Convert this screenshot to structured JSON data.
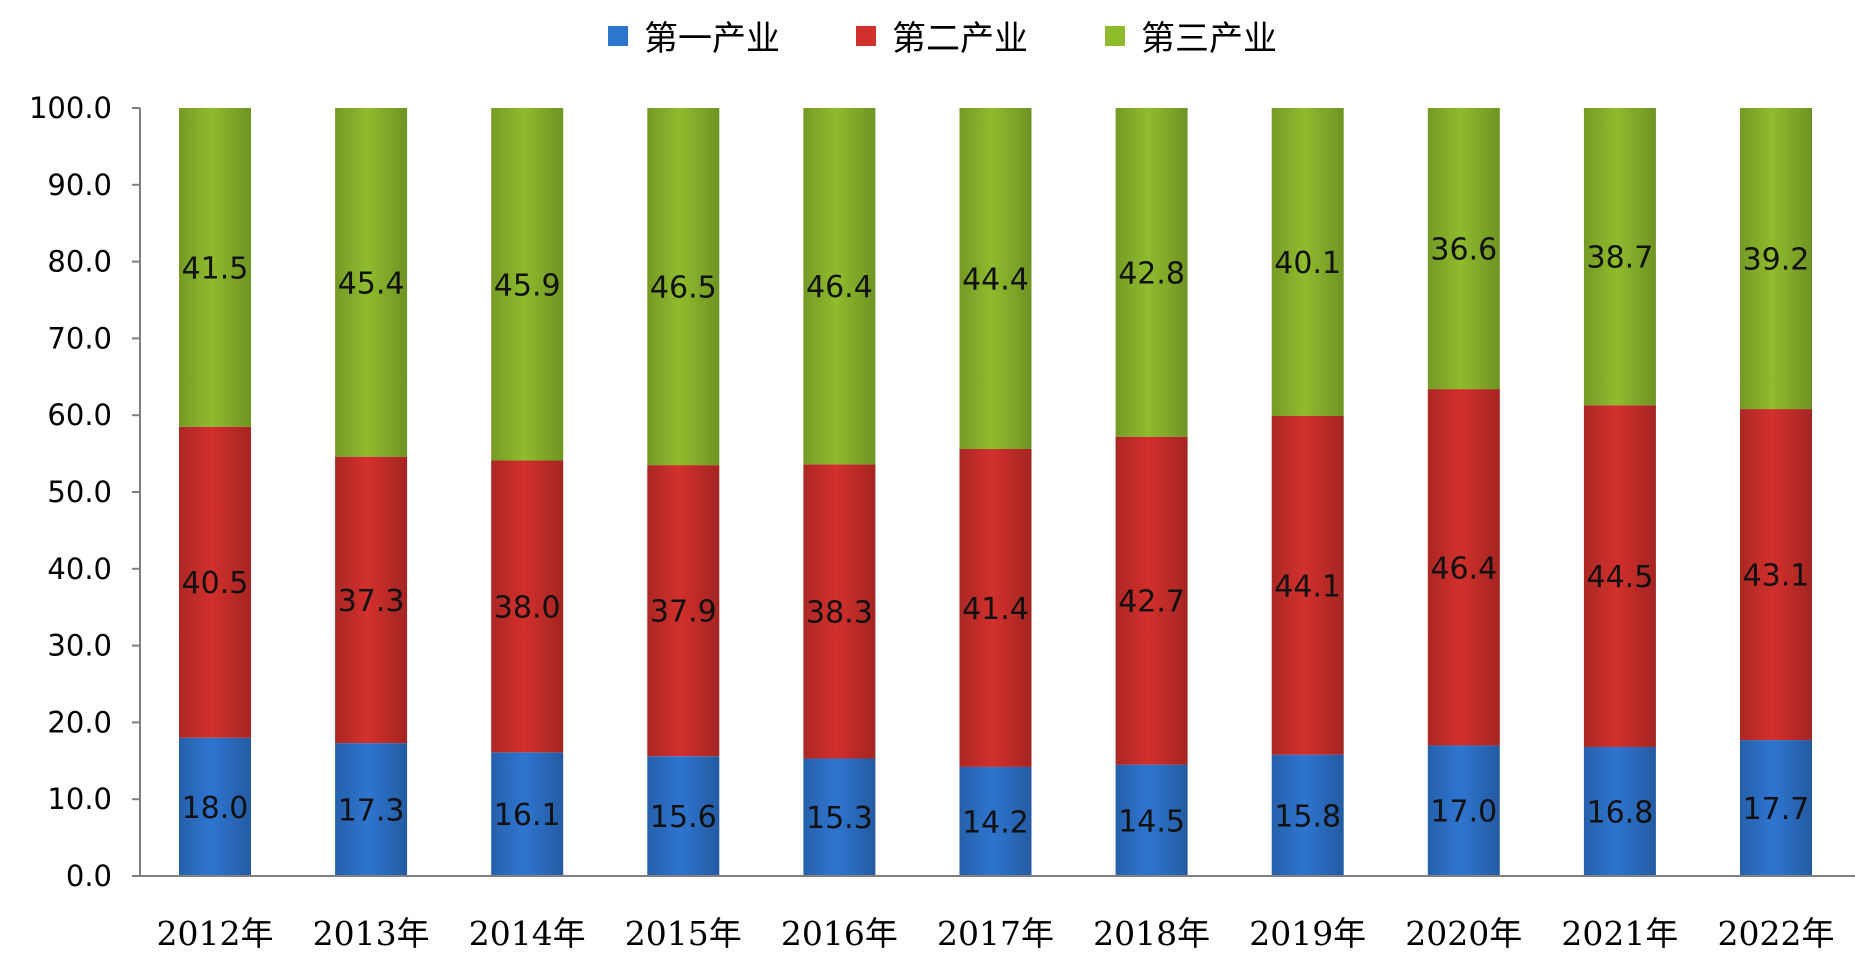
{
  "chart_data": {
    "type": "bar",
    "stacked": true,
    "categories": [
      "2012年",
      "2013年",
      "2014年",
      "2015年",
      "2016年",
      "2017年",
      "2018年",
      "2019年",
      "2020年",
      "2021年",
      "2022年"
    ],
    "series": [
      {
        "name": "第一产业",
        "color": "#2e75d0",
        "values": [
          18.0,
          17.3,
          16.1,
          15.6,
          15.3,
          14.2,
          14.5,
          15.8,
          17.0,
          16.8,
          17.7
        ],
        "labels": [
          "18.0",
          "17.3",
          "16.1",
          "15.6",
          "15.3",
          "14.2",
          "14.5",
          "15.8",
          "17.0",
          "16.8",
          "17.7"
        ]
      },
      {
        "name": "第二产业",
        "color": "#d2302c",
        "values": [
          40.5,
          37.3,
          38.0,
          37.9,
          38.3,
          41.4,
          42.7,
          44.1,
          46.4,
          44.5,
          43.1
        ],
        "labels": [
          "40.5",
          "37.3",
          "38.0",
          "37.9",
          "38.3",
          "41.4",
          "42.7",
          "44.1",
          "46.4",
          "44.5",
          "43.1"
        ]
      },
      {
        "name": "第三产业",
        "color": "#8fbc2d",
        "values": [
          41.5,
          45.4,
          45.9,
          46.5,
          46.4,
          44.4,
          42.8,
          40.1,
          36.6,
          38.7,
          39.2
        ],
        "labels": [
          "41.5",
          "45.4",
          "45.9",
          "46.5",
          "46.4",
          "44.4",
          "42.8",
          "40.1",
          "36.6",
          "38.7",
          "39.2"
        ]
      }
    ],
    "yticks": [
      "0.0",
      "10.0",
      "20.0",
      "30.0",
      "40.0",
      "50.0",
      "60.0",
      "70.0",
      "80.0",
      "90.0",
      "100.0"
    ],
    "ylim": [
      0,
      100
    ],
    "title": "",
    "xlabel": "",
    "ylabel": "",
    "legend_position": "top-center",
    "grid": false
  }
}
